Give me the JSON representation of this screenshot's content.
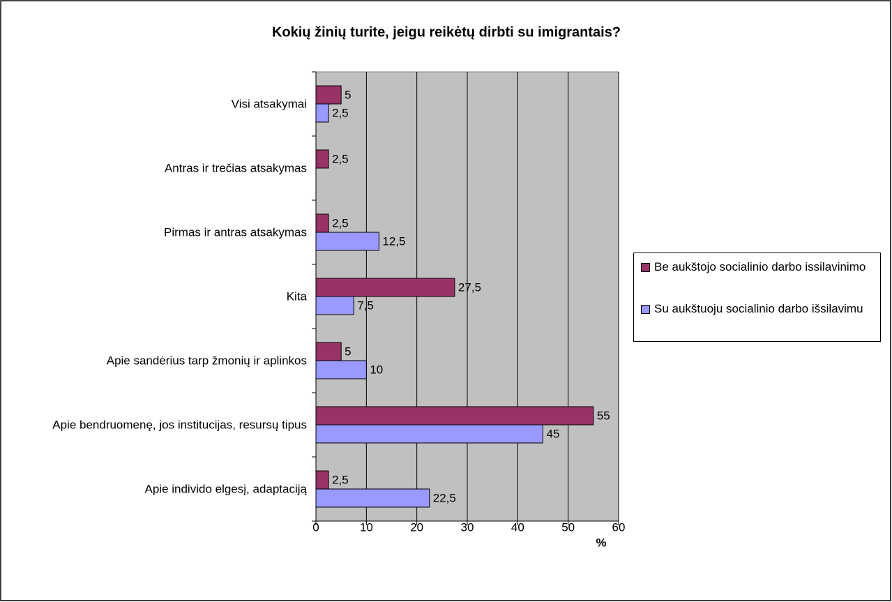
{
  "chart_data": {
    "type": "bar",
    "orientation": "horizontal",
    "title": "Kokių žinių turite, jeigu reikėtų dirbti su imigrantais?",
    "x_label": "%",
    "categories": [
      "Visi atsakymai",
      "Antras ir trečias atsakymas",
      "Pirmas ir antras atsakymas",
      "Kita",
      "Apie sandėrius tarp žmonių ir aplinkos",
      "Apie bendruomenę, jos institucijas, resursų tipus",
      "Apie individo elgesį, adaptaciją"
    ],
    "series": [
      {
        "name": "Be aukštojo socialinio darbo issilavinimo",
        "color": "#993366",
        "values": [
          5,
          2.5,
          2.5,
          27.5,
          5,
          55,
          2.5
        ],
        "value_labels": [
          "5",
          "2,5",
          "2,5",
          "27,5",
          "5",
          "55",
          "2,5"
        ]
      },
      {
        "name": "Su aukštuoju socialinio darbo išsilavimu",
        "color": "#9999ff",
        "values": [
          2.5,
          null,
          12.5,
          7.5,
          10,
          45,
          22.5
        ],
        "value_labels": [
          "2,5",
          null,
          "12,5",
          "7,5",
          "10",
          "45",
          "22,5"
        ]
      }
    ],
    "xlim": [
      0,
      60
    ],
    "xticks": [
      0,
      10,
      20,
      30,
      40,
      50,
      60
    ],
    "grid": true,
    "plot_background": "#c0c0c0",
    "legend_position": "right"
  }
}
